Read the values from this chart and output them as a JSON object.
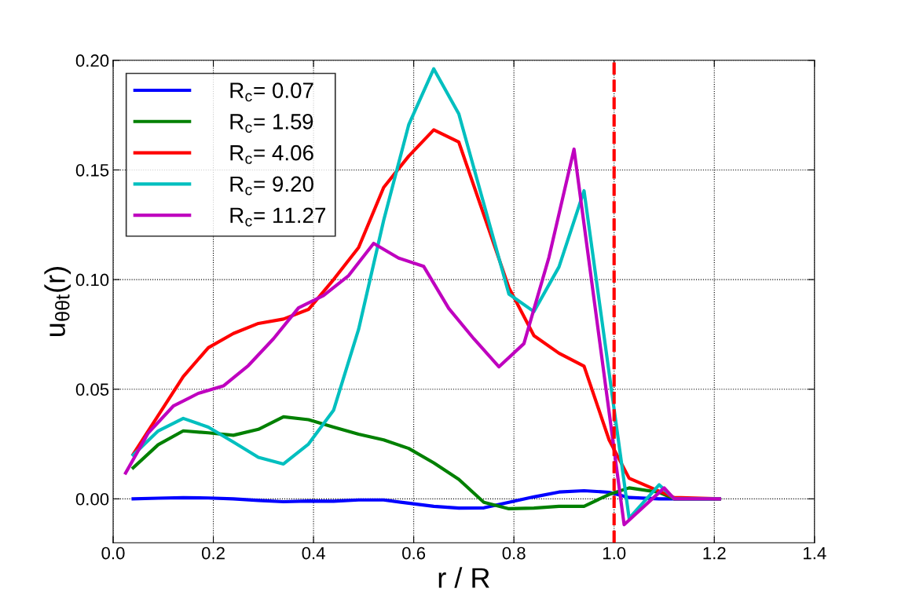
{
  "chart_data": {
    "type": "line",
    "xlabel": "r / R",
    "ylabel": "u$_{θθt}$(r)",
    "xlim": [
      0.0,
      1.4
    ],
    "xticks": [
      {
        "value": 0.0,
        "label": "0.0"
      },
      0.2,
      0.4,
      0.6,
      0.8,
      {
        "value": 1.0,
        "label": "1.0"
      },
      1.2,
      1.4
    ],
    "ylim": [
      -0.02,
      0.2
    ],
    "yticks": [
      {
        "value": 0.0,
        "label": "0.00"
      },
      0.05,
      {
        "value": 0.1,
        "label": "0.10"
      },
      0.15,
      {
        "value": 0.2,
        "label": "0.20"
      }
    ],
    "grid": true,
    "legend": "top left",
    "line_style": "solid",
    "marker": "none",
    "ref_lines": [
      {
        "axis": "x",
        "value": 1.0,
        "color": "#ff0000",
        "line_style": "dashed"
      }
    ],
    "series": [
      {
        "name": "R$_{c}$= 0.07",
        "color": "#0000ff",
        "x": [
          0.04,
          0.09,
          0.14,
          0.19,
          0.24,
          0.29,
          0.34,
          0.39,
          0.44,
          0.49,
          0.54,
          0.59,
          0.64,
          0.69,
          0.74,
          0.79,
          0.84,
          0.89,
          0.94,
          0.99,
          1.03,
          1.09,
          1.12,
          1.21
        ],
        "values": [
          0.0,
          0.0003,
          0.0005,
          0.0004,
          0.0,
          -0.0007,
          -0.0013,
          -0.001,
          -0.0011,
          -0.0005,
          -0.0005,
          -0.002,
          -0.0034,
          -0.0042,
          -0.0041,
          -0.0016,
          0.0009,
          0.0031,
          0.0037,
          0.003,
          0.0006,
          0.0,
          0.0,
          0.0
        ]
      },
      {
        "name": "R$_{c}$= 1.59",
        "color": "#008000",
        "x": [
          0.04,
          0.09,
          0.14,
          0.19,
          0.24,
          0.29,
          0.34,
          0.39,
          0.44,
          0.49,
          0.54,
          0.59,
          0.64,
          0.69,
          0.74,
          0.79,
          0.84,
          0.89,
          0.94,
          0.99,
          1.03,
          1.09,
          1.12,
          1.21
        ],
        "values": [
          0.0142,
          0.0247,
          0.031,
          0.0301,
          0.029,
          0.0317,
          0.0374,
          0.0361,
          0.0327,
          0.0295,
          0.0269,
          0.023,
          0.0164,
          0.0089,
          -0.0016,
          -0.0045,
          -0.0042,
          -0.0034,
          -0.0034,
          0.002,
          0.005,
          0.003,
          0.0,
          0.0
        ]
      },
      {
        "name": "R$_{c}$= 4.06",
        "color": "#ff0000",
        "x": [
          0.04,
          0.09,
          0.14,
          0.19,
          0.24,
          0.29,
          0.34,
          0.39,
          0.44,
          0.49,
          0.54,
          0.59,
          0.64,
          0.69,
          0.79,
          0.84,
          0.89,
          0.94,
          0.99,
          1.03,
          1.09,
          1.12,
          1.21
        ],
        "values": [
          0.0203,
          0.038,
          0.0558,
          0.0689,
          0.0754,
          0.08,
          0.082,
          0.0864,
          0.1,
          0.1146,
          0.142,
          0.1563,
          0.1683,
          0.1627,
          0.0963,
          0.0744,
          0.0664,
          0.0605,
          0.0269,
          0.0094,
          0.0035,
          0.0006,
          0.0
        ]
      },
      {
        "name": "R$_{c}$= 9.20",
        "color": "#00bfbf",
        "x": [
          0.04,
          0.09,
          0.14,
          0.19,
          0.24,
          0.29,
          0.34,
          0.39,
          0.44,
          0.49,
          0.54,
          0.59,
          0.64,
          0.69,
          0.79,
          0.84,
          0.89,
          0.94,
          1.03,
          1.09,
          1.12,
          1.21
        ],
        "values": [
          0.02,
          0.031,
          0.0367,
          0.0327,
          0.0259,
          0.0189,
          0.0159,
          0.025,
          0.0404,
          0.0773,
          0.127,
          0.1706,
          0.1961,
          0.1756,
          0.0934,
          0.0854,
          0.1058,
          0.1405,
          -0.0089,
          0.0064,
          0.0,
          0.0
        ]
      },
      {
        "name": "R$_{c}$= 11.27",
        "color": "#bf00bf",
        "x": [
          0.025,
          0.07,
          0.12,
          0.17,
          0.22,
          0.27,
          0.32,
          0.37,
          0.42,
          0.47,
          0.52,
          0.57,
          0.62,
          0.67,
          0.72,
          0.77,
          0.82,
          0.87,
          0.92,
          1.02,
          1.1,
          1.12,
          1.21
        ],
        "values": [
          0.0118,
          0.03,
          0.0423,
          0.0481,
          0.0515,
          0.0608,
          0.073,
          0.0871,
          0.0927,
          0.1018,
          0.1165,
          0.1098,
          0.106,
          0.0868,
          0.073,
          0.0602,
          0.0708,
          0.1102,
          0.1595,
          -0.0118,
          0.005,
          0.0,
          0.0
        ]
      }
    ]
  }
}
